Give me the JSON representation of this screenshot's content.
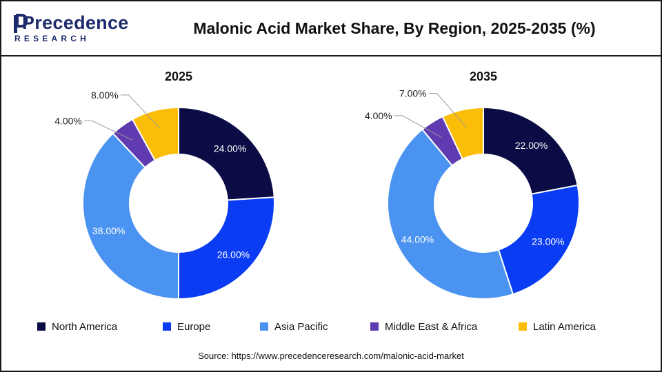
{
  "header": {
    "logo_text": "Precedence",
    "logo_subtext": "RESEARCH",
    "title": "Malonic Acid Market Share, By Region, 2025-2035 (%)"
  },
  "colors": {
    "North America": "#0b0b45",
    "Europe": "#0a3cf4",
    "Asia Pacific": "#4b93f0",
    "Middle East & Africa": "#5f3ab0",
    "Latin America": "#fbbd07"
  },
  "legend": [
    {
      "label": "North America"
    },
    {
      "label": "Europe"
    },
    {
      "label": "Asia Pacific"
    },
    {
      "label": "Middle East & Africa"
    },
    {
      "label": "Latin America"
    }
  ],
  "chart_data": [
    {
      "type": "pie",
      "title": "2025",
      "categories": [
        "North America",
        "Europe",
        "Asia Pacific",
        "Middle East & Africa",
        "Latin America"
      ],
      "values": [
        24.0,
        26.0,
        38.0,
        4.0,
        8.0
      ],
      "labels": [
        "24.00%",
        "26.00%",
        "38.00%",
        "4.00%",
        "8.00%"
      ],
      "donut": true,
      "legend_position": "bottom"
    },
    {
      "type": "pie",
      "title": "2035",
      "categories": [
        "North America",
        "Europe",
        "Asia Pacific",
        "Middle East & Africa",
        "Latin America"
      ],
      "values": [
        22.0,
        23.0,
        44.0,
        4.0,
        7.0
      ],
      "labels": [
        "22.00%",
        "23.00%",
        "44.00%",
        "4.00%",
        "7.00%"
      ],
      "donut": true,
      "legend_position": "bottom"
    }
  ],
  "footer": {
    "source": "Source: https://www.precedenceresearch.com/malonic-acid-market"
  }
}
